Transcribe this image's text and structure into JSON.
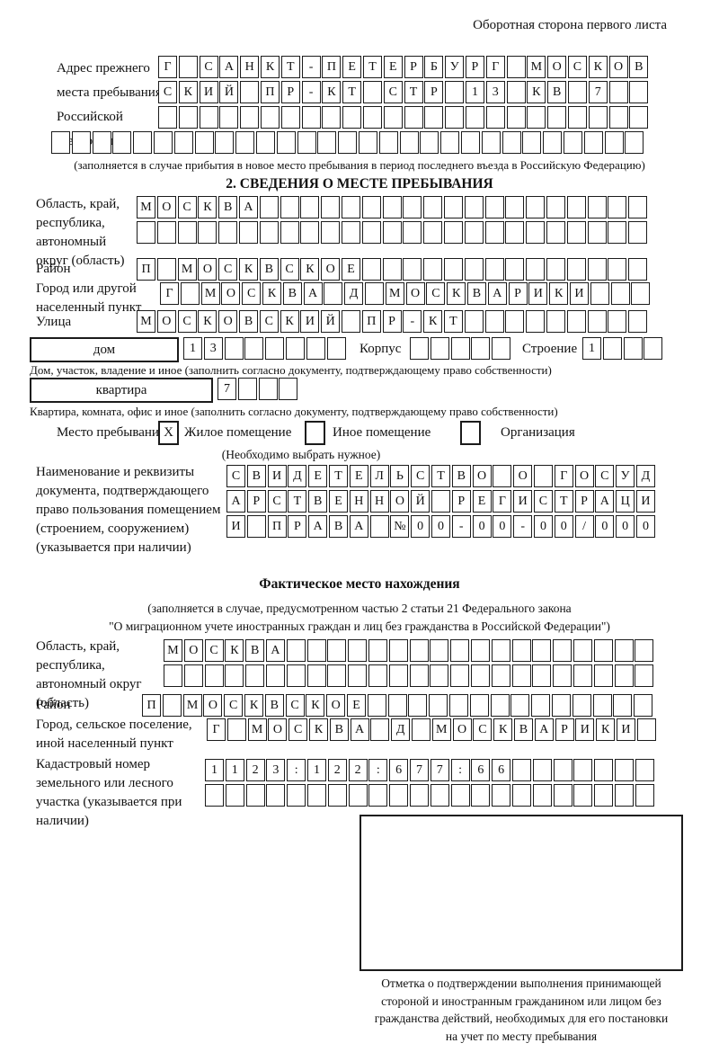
{
  "header": {
    "note": "Оборотная сторона первого листа"
  },
  "prev_address": {
    "label": "Адрес прежнего места пребывания в Российской Федерации",
    "rows": [
      "Г САНКТ-ПЕТЕРБУРГ МОСКОВ",
      "СКИЙ ПР-КТ СТР 13 КВ 7  ",
      "                        ",
      "                             "
    ],
    "caption": "(заполняется в случае прибытия в новое место пребывания в период последнего въезда в Российскую Федерацию)"
  },
  "section2": {
    "title": "2. СВЕДЕНИЯ О МЕСТЕ ПРЕБЫВАНИЯ",
    "region": {
      "label": "Область, край, республика, автономный округ (область)",
      "rows": [
        "МОСКВА                   ",
        "                         "
      ]
    },
    "district": {
      "label": "Район",
      "row": "П МОСКВСКОЕ              "
    },
    "city": {
      "label": "Город или другой населенный пункт",
      "row": "Г МОСКВА Д МОСКВАРИКИ   "
    },
    "street": {
      "label": "Улица",
      "row": "МОСКОВСКИЙ ПР-КТ         "
    },
    "house": {
      "box_label": "дом",
      "cells": "13      ",
      "korpus_label": "Корпус",
      "korpus_cells": "     ",
      "stroenie_label": "Строение",
      "stroenie_cells": "1   "
    },
    "house_caption": "Дом, участок, владение и иное (заполнить согласно документу, подтверждающему право собственности)",
    "apartment": {
      "box_label": "квартира",
      "cells": "7   "
    },
    "apartment_caption": "Квартира, комната, офис и иное (заполнить согласно документу, подтверждающему право собственности)",
    "stay": {
      "label": "Место пребывания:",
      "options": [
        {
          "label": "Жилое помещение",
          "mark": "X",
          "checked": true
        },
        {
          "label": "Иное помещение",
          "mark": "",
          "checked": false
        },
        {
          "label": "Организация",
          "mark": "",
          "checked": false
        }
      ],
      "note": "(Необходимо выбрать нужное)"
    },
    "document": {
      "label": "Наименование и реквизиты документа, подтверждающего право пользования помещением (строением, сооружением) (указывается при наличии)",
      "rows": [
        "СВИДЕТЕЛЬСТВО О ГОСУД",
        "АРСТВЕННОЙ РЕГИСТРАЦИ",
        "И ПРАВА №00-00-00/000"
      ]
    }
  },
  "actual_location": {
    "title": "Фактическое место нахождения",
    "subtitle_line1": "(заполняется в случае, предусмотренном частью 2 статьи 21 Федерального закона",
    "subtitle_line2": "\"О миграционном учете иностранных граждан и лиц без гражданства в Российской Федерации\")",
    "region": {
      "label": "Область, край, республика, автономный округ (область)",
      "rows": [
        "МОСКВА                  ",
        "                        "
      ]
    },
    "district": {
      "label": "Район",
      "row": "П МОСКВСКОЕ              "
    },
    "city": {
      "label": "Город, сельское поселение, иной населенный пункт",
      "row": "Г МОСКВА Д МОСКВАРИКИ "
    },
    "cadastral": {
      "label": "Кадастровый номер земельного или лесного участка (указывается при наличии)",
      "rows": [
        "1123:122:677:66       ",
        "                      "
      ]
    }
  },
  "stamp": {
    "caption_lines": [
      "Отметка о подтверждении выполнения принимающей",
      "стороной и иностранным гражданином или лицом без",
      "гражданства действий, необходимых для его постановки",
      "на учет по месту пребывания"
    ]
  }
}
